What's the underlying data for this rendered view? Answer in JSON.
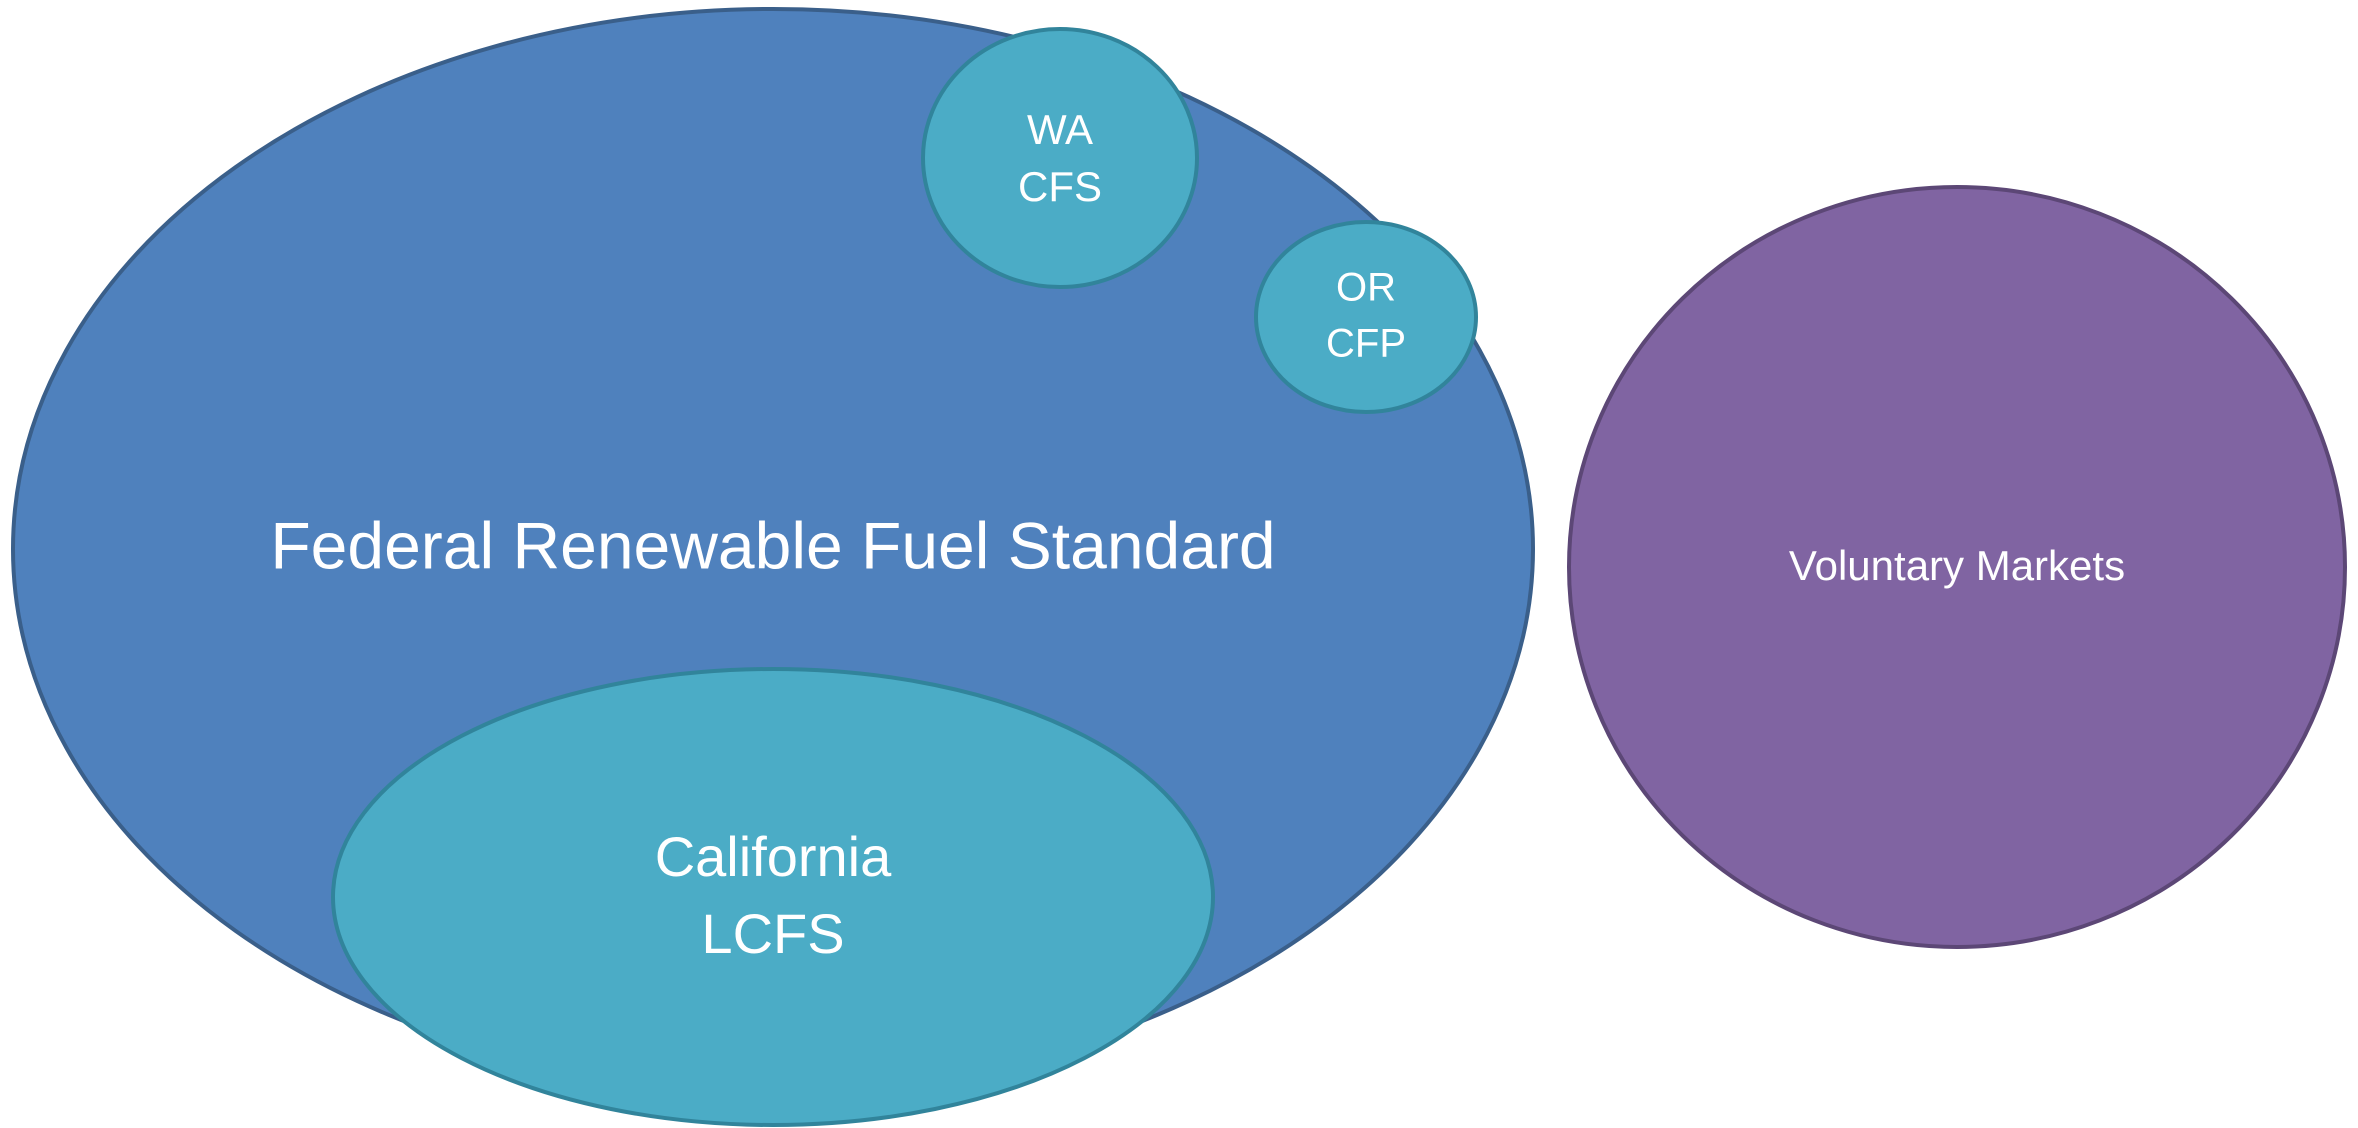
{
  "nodes": [
    {
      "lines": [
        "Federal Renewable Fuel Standard"
      ]
    },
    {
      "lines": [
        "California",
        "LCFS"
      ]
    },
    {
      "lines": [
        "WA",
        "CFS"
      ]
    },
    {
      "lines": [
        "OR",
        "CFP"
      ]
    },
    {
      "lines": [
        "Voluntary Markets"
      ]
    }
  ]
}
